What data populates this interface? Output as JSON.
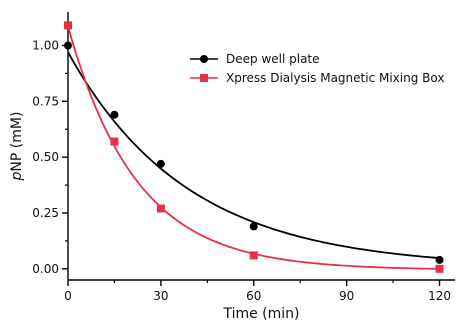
{
  "chart_data": {
    "type": "scatter",
    "xlabel": "Time (min)",
    "ylabel": "pNP (mM)",
    "ylabel_italic_part": "p",
    "ylabel_rest": "NP (mM)",
    "xlim": [
      0,
      125
    ],
    "ylim": [
      -0.05,
      1.15
    ],
    "x_ticks": [
      0,
      30,
      60,
      90,
      120
    ],
    "x_tick_labels": [
      "0",
      "30",
      "60",
      "90",
      "120"
    ],
    "y_ticks": [
      0,
      0.25,
      0.5,
      0.75,
      1.0
    ],
    "y_tick_labels": [
      "0.00",
      "0.25",
      "0.50",
      "0.75",
      "1.00"
    ],
    "grid": false,
    "legend_position": "top-right",
    "series": [
      {
        "name": "Deep well plate",
        "color": "#000000",
        "marker": "circle",
        "x": [
          0,
          15,
          30,
          60,
          120
        ],
        "y": [
          1.0,
          0.69,
          0.47,
          0.19,
          0.04
        ],
        "fit": {
          "type": "exponential_decay",
          "a": 0.965,
          "k": 0.0259,
          "c": 0.005
        }
      },
      {
        "name": "Xpress Dialysis Magnetic Mixing Box",
        "color": "#e8304a",
        "marker": "square",
        "x": [
          0,
          15,
          30,
          60,
          120
        ],
        "y": [
          1.09,
          0.57,
          0.27,
          0.06,
          0.0
        ],
        "fit": {
          "type": "exponential_decay",
          "a": 1.09,
          "k": 0.0452,
          "c": -0.005
        }
      }
    ]
  }
}
